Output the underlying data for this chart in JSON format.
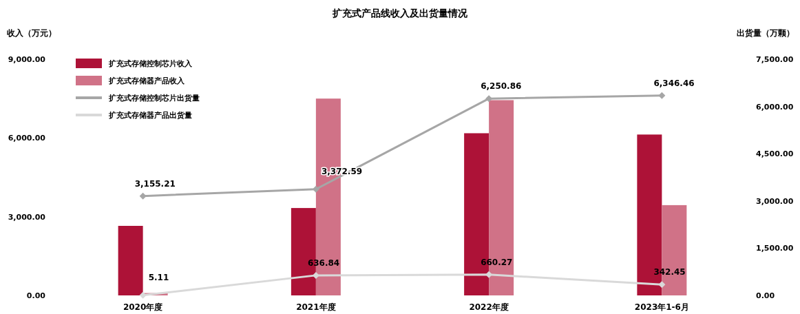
{
  "chart_data": {
    "type": "bar",
    "title": "扩充式产品线收入及出货量情况",
    "ylabel": "收入（万元）",
    "y2label": "出货量（万颗）",
    "categories": [
      "2020年度",
      "2021年度",
      "2022年度",
      "2023年1-6月"
    ],
    "series": [
      {
        "name": "扩充式存储控制芯片收入",
        "color": "#ad1237",
        "values": [
          2650,
          3330,
          6180,
          6130
        ]
      },
      {
        "name": "扩充式存储器产品收入",
        "color": "#d07287",
        "values": [
          90,
          7500,
          7440,
          3440
        ]
      },
      {
        "name": "扩充式存储控制芯片出货量",
        "type": "line",
        "axis": "y2",
        "color": "#a6a6a6",
        "marker": "diamond",
        "values": [
          3155.21,
          3372.59,
          6250.86,
          6346.46
        ],
        "value_labels": [
          "3,155.21",
          "3,372.59",
          "6,250.86",
          "6,346.46"
        ]
      },
      {
        "name": "扩充式存储器产品出货量",
        "type": "line",
        "axis": "y2",
        "color": "#d9d9d9",
        "marker": "diamond",
        "values": [
          5.11,
          636.84,
          660.27,
          342.45
        ],
        "value_labels": [
          "5.11",
          "636.84",
          "660.27",
          "342.45"
        ]
      }
    ],
    "ylim": [
      0,
      9000
    ],
    "yticks": [
      {
        "value": 0,
        "label": "0.00"
      },
      {
        "value": 3000,
        "label": "3,000.00"
      },
      {
        "value": 6000,
        "label": "6,000.00"
      },
      {
        "value": 9000,
        "label": "9,000.00"
      }
    ],
    "y2lim": [
      0,
      7500
    ],
    "y2ticks": [
      {
        "value": 0,
        "label": "0.00"
      },
      {
        "value": 1500,
        "label": "1,500.00"
      },
      {
        "value": 3000,
        "label": "3,000.00"
      },
      {
        "value": 4500,
        "label": "4,500.00"
      },
      {
        "value": 6000,
        "label": "6,000.00"
      },
      {
        "value": 7500,
        "label": "7,500.00"
      }
    ],
    "legend": "top left",
    "grid": false
  }
}
